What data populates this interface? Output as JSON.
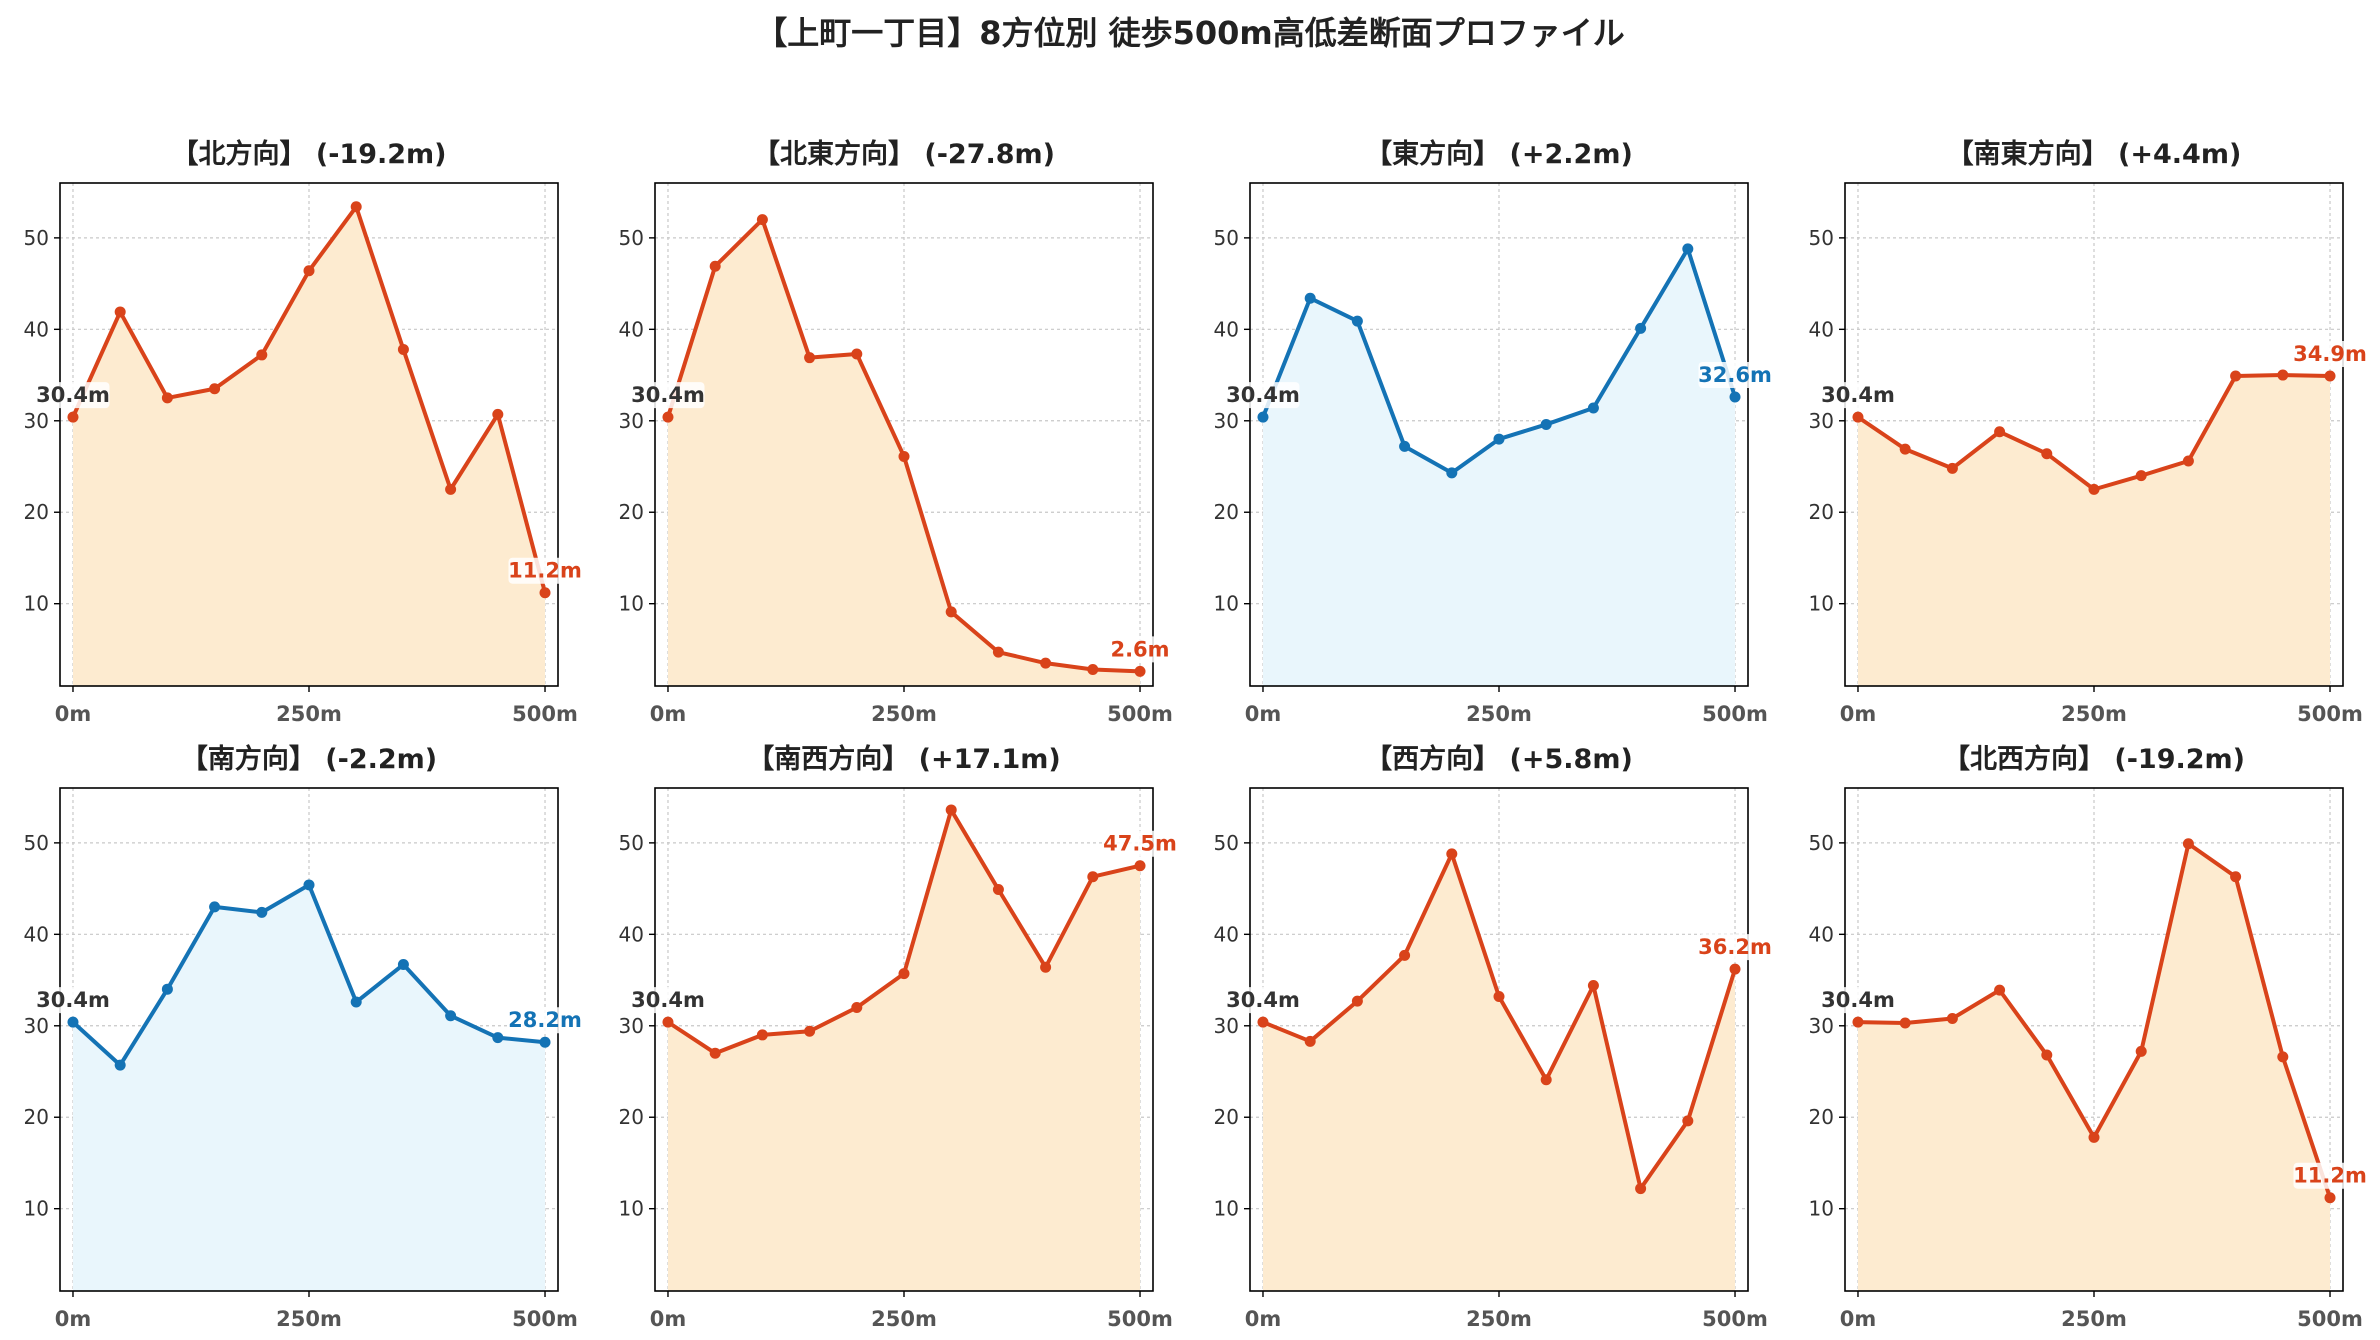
{
  "title": "【上町一丁目】8方位別 徒歩500m高低差断面プロファイル",
  "colors": {
    "down": "#d9431a",
    "down_fill": "#fdebd0",
    "up": "#1473b5",
    "up_fill": "#e9f6fc",
    "grid": "#c8c8c8",
    "axis": "#000000"
  },
  "chart_data": [
    {
      "type": "area",
      "title": "【北方向】 (-19.2m)",
      "x": [
        0,
        50,
        100,
        150,
        200,
        250,
        300,
        350,
        400,
        450,
        500
      ],
      "y": [
        30.4,
        41.9,
        32.5,
        33.5,
        37.2,
        46.4,
        53.4,
        37.8,
        22.5,
        30.7,
        11.2
      ],
      "start_label": "30.4m",
      "end_label": "11.2m",
      "color": "down",
      "xticks": [
        "0m",
        "250m",
        "500m"
      ],
      "yticks": [
        10,
        20,
        30,
        40,
        50
      ],
      "ylim": [
        1,
        56
      ],
      "grid": true
    },
    {
      "type": "area",
      "title": "【北東方向】 (-27.8m)",
      "x": [
        0,
        50,
        100,
        150,
        200,
        250,
        300,
        350,
        400,
        450,
        500
      ],
      "y": [
        30.4,
        46.9,
        52.0,
        36.9,
        37.3,
        26.1,
        9.1,
        4.7,
        3.5,
        2.8,
        2.6
      ],
      "start_label": "30.4m",
      "end_label": "2.6m",
      "color": "down",
      "xticks": [
        "0m",
        "250m",
        "500m"
      ],
      "yticks": [
        10,
        20,
        30,
        40,
        50
      ],
      "ylim": [
        1,
        56
      ],
      "grid": true
    },
    {
      "type": "area",
      "title": "【東方向】 (+2.2m)",
      "x": [
        0,
        50,
        100,
        150,
        200,
        250,
        300,
        350,
        400,
        450,
        500
      ],
      "y": [
        30.4,
        43.4,
        40.9,
        27.2,
        24.3,
        28.0,
        29.6,
        31.4,
        40.1,
        48.8,
        32.6
      ],
      "start_label": "30.4m",
      "end_label": "32.6m",
      "color": "up",
      "xticks": [
        "0m",
        "250m",
        "500m"
      ],
      "yticks": [
        10,
        20,
        30,
        40,
        50
      ],
      "ylim": [
        1,
        56
      ],
      "grid": true
    },
    {
      "type": "area",
      "title": "【南東方向】 (+4.4m)",
      "x": [
        0,
        50,
        100,
        150,
        200,
        250,
        300,
        350,
        400,
        450,
        500
      ],
      "y": [
        30.4,
        26.9,
        24.8,
        28.8,
        26.4,
        22.5,
        24.0,
        25.6,
        34.9,
        35.0,
        34.9
      ],
      "start_label": "30.4m",
      "end_label": "34.9m",
      "color": "down",
      "xticks": [
        "0m",
        "250m",
        "500m"
      ],
      "yticks": [
        10,
        20,
        30,
        40,
        50
      ],
      "ylim": [
        1,
        56
      ],
      "grid": true
    },
    {
      "type": "area",
      "title": "【南方向】 (-2.2m)",
      "x": [
        0,
        50,
        100,
        150,
        200,
        250,
        300,
        350,
        400,
        450,
        500
      ],
      "y": [
        30.4,
        25.7,
        34.0,
        43.0,
        42.4,
        45.4,
        32.6,
        36.7,
        31.1,
        28.7,
        28.2
      ],
      "start_label": "30.4m",
      "end_label": "28.2m",
      "color": "up",
      "xticks": [
        "0m",
        "250m",
        "500m"
      ],
      "yticks": [
        10,
        20,
        30,
        40,
        50
      ],
      "ylim": [
        1,
        56
      ],
      "grid": true
    },
    {
      "type": "area",
      "title": "【南西方向】 (+17.1m)",
      "x": [
        0,
        50,
        100,
        150,
        200,
        250,
        300,
        350,
        400,
        450,
        500
      ],
      "y": [
        30.4,
        27.0,
        29.0,
        29.4,
        32.0,
        35.7,
        53.6,
        44.9,
        36.4,
        46.3,
        47.5
      ],
      "start_label": "30.4m",
      "end_label": "47.5m",
      "color": "down",
      "xticks": [
        "0m",
        "250m",
        "500m"
      ],
      "yticks": [
        10,
        20,
        30,
        40,
        50
      ],
      "ylim": [
        1,
        56
      ],
      "grid": true
    },
    {
      "type": "area",
      "title": "【西方向】 (+5.8m)",
      "x": [
        0,
        50,
        100,
        150,
        200,
        250,
        300,
        350,
        400,
        450,
        500
      ],
      "y": [
        30.4,
        28.3,
        32.7,
        37.7,
        48.8,
        33.2,
        24.1,
        34.4,
        12.2,
        19.6,
        36.2
      ],
      "start_label": "30.4m",
      "end_label": "36.2m",
      "color": "down",
      "xticks": [
        "0m",
        "250m",
        "500m"
      ],
      "yticks": [
        10,
        20,
        30,
        40,
        50
      ],
      "ylim": [
        1,
        56
      ],
      "grid": true
    },
    {
      "type": "area",
      "title": "【北西方向】 (-19.2m)",
      "x": [
        0,
        50,
        100,
        150,
        200,
        250,
        300,
        350,
        400,
        450,
        500
      ],
      "y": [
        30.4,
        30.3,
        30.8,
        33.9,
        26.8,
        17.8,
        27.2,
        49.9,
        46.3,
        26.6,
        11.2
      ],
      "start_label": "30.4m",
      "end_label": "11.2m",
      "color": "down",
      "xticks": [
        "0m",
        "250m",
        "500m"
      ],
      "yticks": [
        10,
        20,
        30,
        40,
        50
      ],
      "ylim": [
        1,
        56
      ],
      "grid": true
    }
  ]
}
